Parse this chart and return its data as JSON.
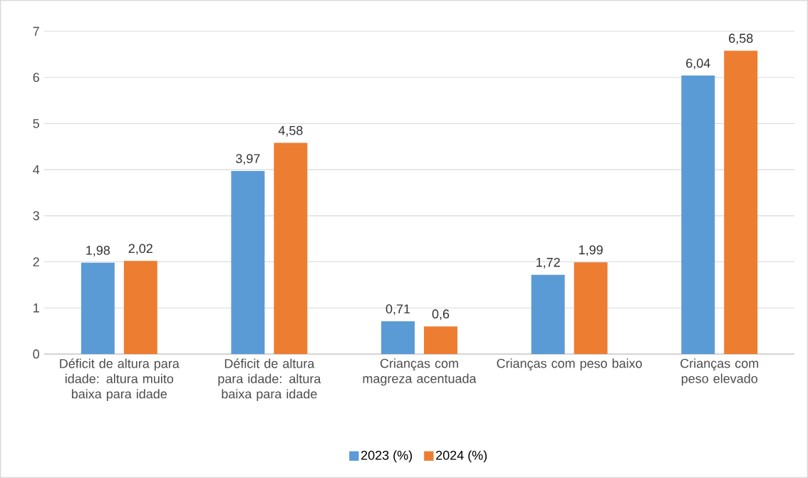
{
  "chart_data": {
    "type": "bar",
    "categories": [
      "Déficit de altura para idade: altura muito baixa para idade",
      "Déficit de altura para idade: altura baixa para idade",
      "Crianças com magreza acentuada",
      "Crianças com peso baixo",
      "Crianças com peso elevado"
    ],
    "series": [
      {
        "name": "2023 (%)",
        "color": "#5b9bd5",
        "values": [
          1.98,
          3.97,
          0.71,
          1.72,
          6.04
        ],
        "value_labels": [
          "1,98",
          "3,97",
          "0,71",
          "1,72",
          "6,04"
        ]
      },
      {
        "name": "2024 (%)",
        "color": "#ed7d31",
        "values": [
          2.02,
          4.58,
          0.6,
          1.99,
          6.58
        ],
        "value_labels": [
          "2,02",
          "4,58",
          "0,6",
          "1,99",
          "6,58"
        ]
      }
    ],
    "ylim": [
      0,
      7
    ],
    "yticks": [
      0,
      1,
      2,
      3,
      4,
      5,
      6,
      7
    ],
    "grid": "y",
    "legend": "bottom"
  }
}
